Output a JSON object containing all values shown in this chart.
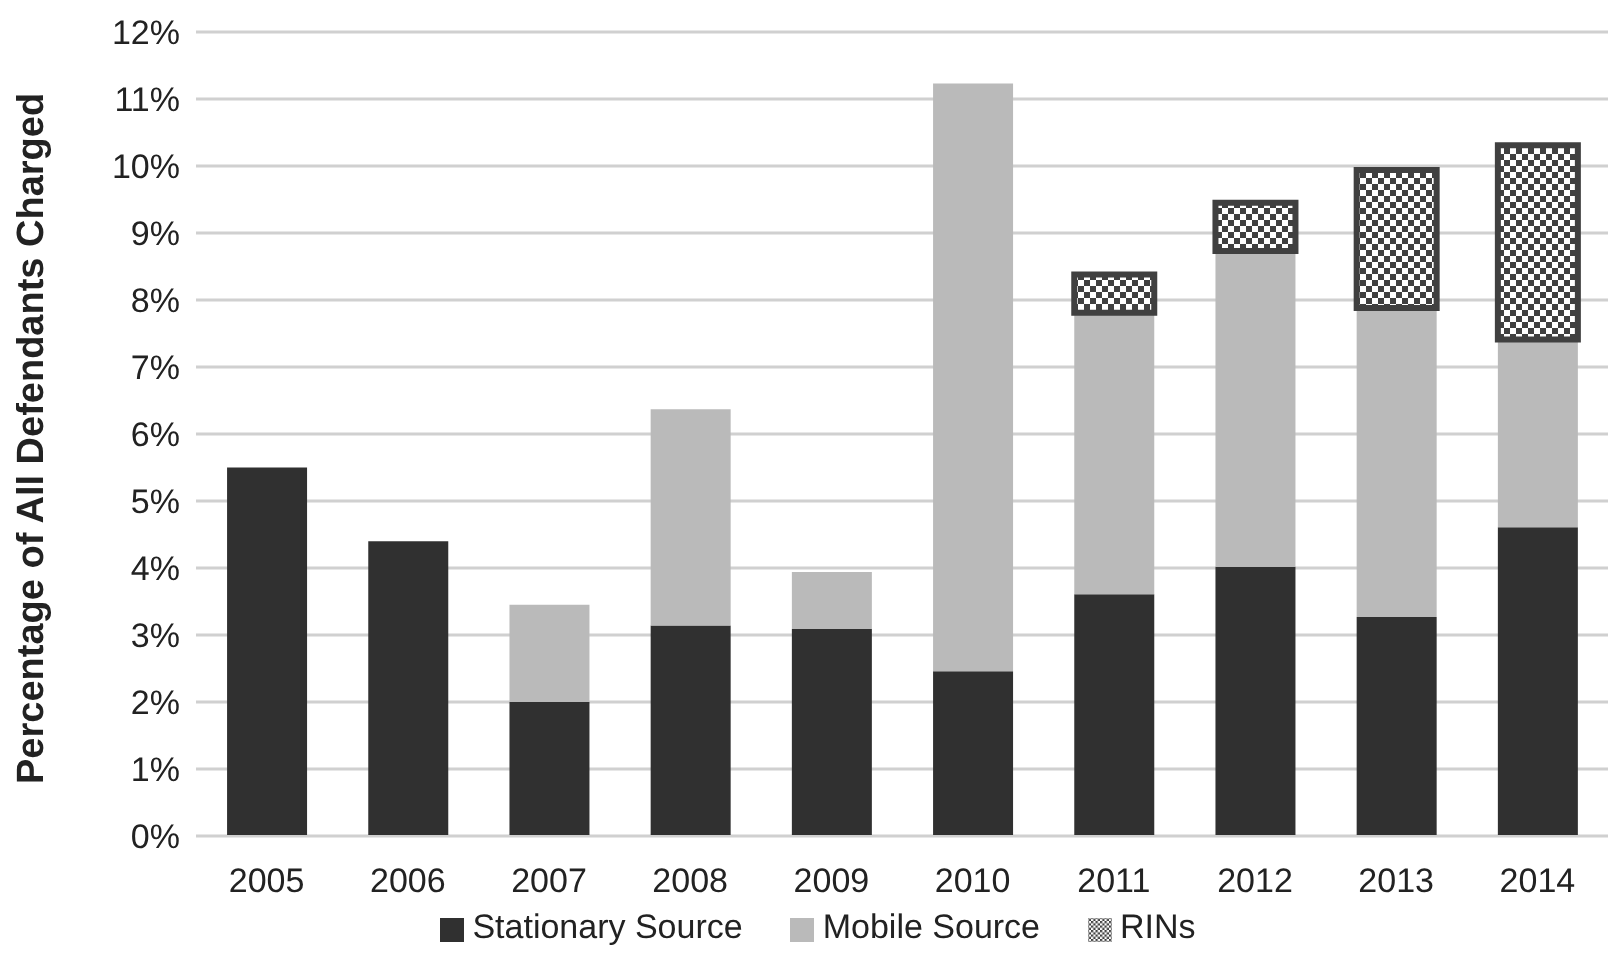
{
  "chart_data": {
    "type": "bar",
    "stacked": true,
    "ylabel": "Percentage of All Defendants Charged",
    "categories": [
      "2005",
      "2006",
      "2007",
      "2008",
      "2009",
      "2010",
      "2011",
      "2012",
      "2013",
      "2014"
    ],
    "series": [
      {
        "name": "Stationary Source",
        "color": "#303030",
        "values": [
          5.5,
          4.4,
          2.0,
          3.14,
          3.09,
          2.46,
          3.61,
          4.02,
          3.27,
          4.61
        ]
      },
      {
        "name": "Mobile Source",
        "color": "#bababa",
        "values": [
          null,
          null,
          1.45,
          3.23,
          0.85,
          8.77,
          4.2,
          4.71,
          4.61,
          2.8
        ]
      },
      {
        "name": "RINs",
        "color": "#404040",
        "values": [
          null,
          null,
          null,
          null,
          null,
          null,
          0.57,
          0.72,
          2.06,
          2.9
        ]
      }
    ],
    "ylim": [
      0,
      12
    ],
    "yticks": [
      {
        "value": 0,
        "label": "0%"
      },
      {
        "value": 1,
        "label": "1%"
      },
      {
        "value": 2,
        "label": "2%"
      },
      {
        "value": 3,
        "label": "3%"
      },
      {
        "value": 4,
        "label": "4%"
      },
      {
        "value": 5,
        "label": "5%"
      },
      {
        "value": 6,
        "label": "6%"
      },
      {
        "value": 7,
        "label": "7%"
      },
      {
        "value": 8,
        "label": "8%"
      },
      {
        "value": 9,
        "label": "9%"
      },
      {
        "value": 10,
        "label": "10%"
      },
      {
        "value": 11,
        "label": "11%"
      },
      {
        "value": 12,
        "label": "12%"
      }
    ],
    "grid": "y",
    "legend": "bottom"
  }
}
